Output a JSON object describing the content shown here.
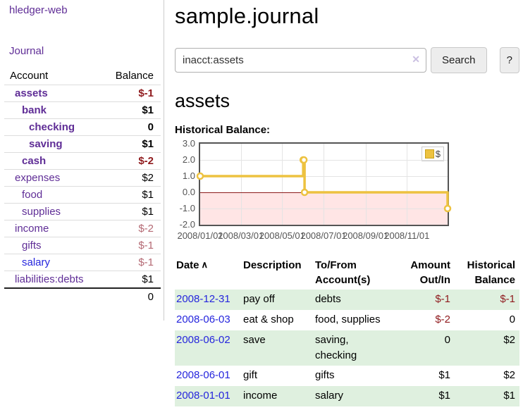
{
  "app": {
    "brand": "hledger-web",
    "nav_journal": "Journal"
  },
  "sidebar": {
    "col_account": "Account",
    "col_balance": "Balance",
    "accounts": [
      {
        "name": "assets",
        "ind": "ind1",
        "weight": "bold",
        "balance": "$-1",
        "bclass": "neg-strong"
      },
      {
        "name": "bank",
        "ind": "ind2",
        "weight": "bold",
        "balance": "$1",
        "bclass": "pos"
      },
      {
        "name": "checking",
        "ind": "ind3",
        "weight": "bold",
        "balance": "0",
        "bclass": "pos"
      },
      {
        "name": "saving",
        "ind": "ind3",
        "weight": "bold",
        "balance": "$1",
        "bclass": "pos"
      },
      {
        "name": "cash",
        "ind": "ind2",
        "weight": "bold",
        "balance": "$-2",
        "bclass": "neg-strong"
      },
      {
        "name": "expenses",
        "ind": "ind1",
        "weight": "",
        "balance": "$2",
        "bclass": "pos"
      },
      {
        "name": "food",
        "ind": "ind2",
        "weight": "",
        "balance": "$1",
        "bclass": "pos"
      },
      {
        "name": "supplies",
        "ind": "ind2",
        "weight": "",
        "balance": "$1",
        "bclass": "pos"
      },
      {
        "name": "income",
        "ind": "ind1",
        "weight": "",
        "balance": "$-2",
        "bclass": "neg-soft"
      },
      {
        "name": "gifts",
        "ind": "ind2",
        "weight": "",
        "balance": "$-1",
        "bclass": "neg-soft"
      },
      {
        "name": "salary",
        "ind": "ind2",
        "weight": "",
        "balance": "$-1",
        "bclass": "neg-soft",
        "link": "blue"
      },
      {
        "name": "liabilities:debts",
        "ind": "ind1",
        "weight": "",
        "balance": "$1",
        "bclass": "pos"
      }
    ],
    "total": "0"
  },
  "main": {
    "title": "sample.journal"
  },
  "search": {
    "value": "inacct:assets",
    "clear_icon": "✕",
    "search_label": "Search",
    "help_label": "?"
  },
  "account": {
    "heading": "assets",
    "chart_title": "Historical Balance:"
  },
  "chart_data": {
    "type": "line",
    "step": true,
    "title": "Historical Balance",
    "series": [
      {
        "name": "$",
        "color": "#edc240",
        "points": [
          [
            "2008-01-01",
            1
          ],
          [
            "2008-06-01",
            2
          ],
          [
            "2008-06-02",
            2
          ],
          [
            "2008-06-03",
            0
          ],
          [
            "2008-12-31",
            -1
          ]
        ]
      }
    ],
    "legend": {
      "label": "$",
      "color": "#edc240",
      "position": "top-right"
    },
    "x_ticks": [
      "2008/01/01",
      "2008/03/01",
      "2008/05/01",
      "2008/07/01",
      "2008/09/01",
      "2008/11/01"
    ],
    "y_ticks": [
      "3.0",
      "2.0",
      "1.0",
      "0.0",
      "-1.0",
      "-2.0"
    ],
    "ylim": [
      -2,
      3
    ],
    "x_range": [
      "2008-01-01",
      "2008-12-31"
    ],
    "grid": true,
    "grid_color": "#e4e4e4",
    "zero_line_color": "#8b1a1a",
    "negative_region_color": "rgba(255,0,0,0.10)"
  },
  "register": {
    "headers": {
      "date": "Date",
      "sort_caret": "∧",
      "description": "Description",
      "tofrom": "To/From\nAccount(s)",
      "amount": "Amount\nOut/In",
      "balance": "Historical\nBalance"
    },
    "rows": [
      {
        "date": "2008-12-31",
        "description": "pay off",
        "tofrom": "debts",
        "amount": "$-1",
        "amount_class": "neg",
        "balance": "$-1",
        "balance_class": "neg"
      },
      {
        "date": "2008-06-03",
        "description": "eat & shop",
        "tofrom": "food, supplies",
        "amount": "$-2",
        "amount_class": "neg",
        "balance": "0",
        "balance_class": ""
      },
      {
        "date": "2008-06-02",
        "description": "save",
        "tofrom": "saving,\nchecking",
        "amount": "0",
        "amount_class": "",
        "balance": "$2",
        "balance_class": ""
      },
      {
        "date": "2008-06-01",
        "description": "gift",
        "tofrom": "gifts",
        "amount": "$1",
        "amount_class": "",
        "balance": "$2",
        "balance_class": ""
      },
      {
        "date": "2008-01-01",
        "description": "income",
        "tofrom": "salary",
        "amount": "$1",
        "amount_class": "",
        "balance": "$1",
        "balance_class": ""
      }
    ]
  }
}
